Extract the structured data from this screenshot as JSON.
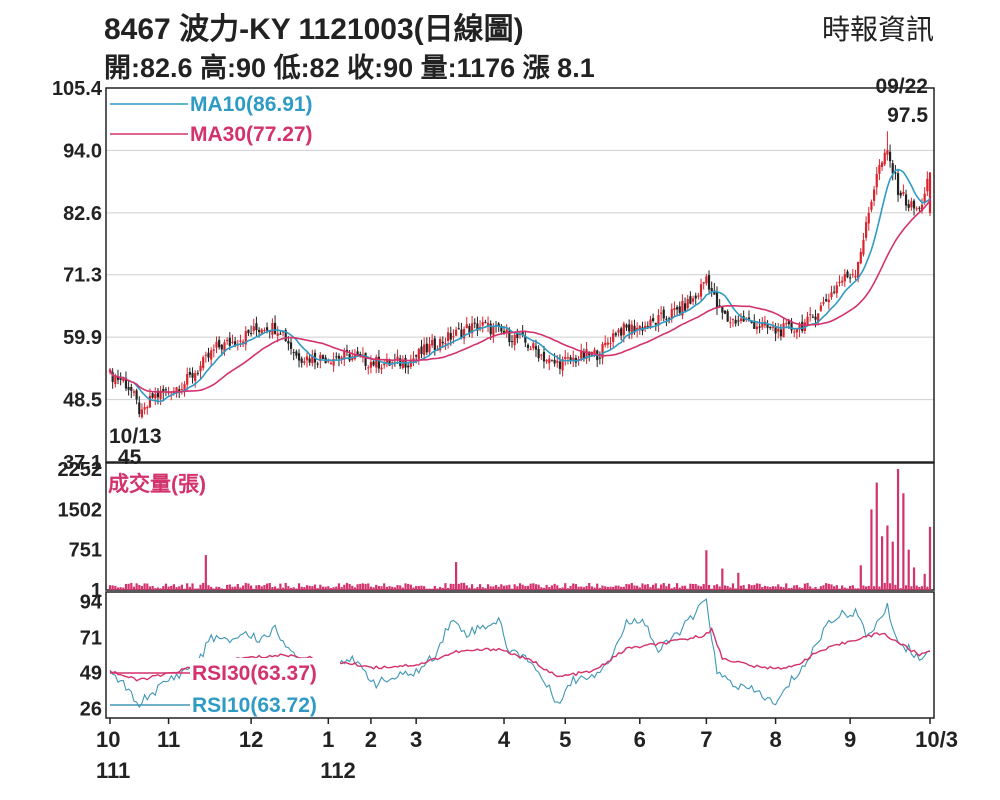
{
  "header": {
    "title": "8467  波力-KY 1121003(日線圖)",
    "ohlc": "開:82.6 高:90 低:82 收:90 量:1176 漲 8.1",
    "source": "時報資訊"
  },
  "colors": {
    "up": "#d9232e",
    "down": "#222222",
    "ma10": "#2e9bc4",
    "ma30": "#d3326c",
    "volume": "#d3326c",
    "rsi10": "#3f97b5",
    "rsi30": "#d3326c",
    "grid": "#cfcfcf",
    "axis": "#222222"
  },
  "chart_data": [
    {
      "type": "candlestick",
      "y_ticks": [
        105.4,
        94.0,
        82.6,
        71.3,
        59.9,
        48.5,
        37.1
      ],
      "ylim": [
        37.1,
        105.4
      ],
      "legend": [
        {
          "key": "ma10",
          "label": "MA10(86.91)"
        },
        {
          "key": "ma30",
          "label": "MA30(77.27)"
        }
      ],
      "annotations": [
        {
          "date_label": "09/22",
          "value_label": "97.5",
          "value": 97.5
        },
        {
          "date_label": "10/13",
          "value_label": "45",
          "value": 45
        }
      ],
      "anchors": [
        [
          0,
          53.0
        ],
        [
          5,
          52.0
        ],
        [
          8,
          50.0
        ],
        [
          12,
          45.5
        ],
        [
          16,
          49.0
        ],
        [
          22,
          50.0
        ],
        [
          28,
          51.5
        ],
        [
          34,
          54.5
        ],
        [
          40,
          58.0
        ],
        [
          46,
          59.0
        ],
        [
          52,
          60.5
        ],
        [
          58,
          62.0
        ],
        [
          64,
          61.5
        ],
        [
          70,
          56.5
        ],
        [
          76,
          56.0
        ],
        [
          84,
          56.2
        ],
        [
          90,
          56.5
        ],
        [
          96,
          55.5
        ],
        [
          104,
          55.0
        ],
        [
          112,
          55.5
        ],
        [
          120,
          58.0
        ],
        [
          128,
          60.0
        ],
        [
          134,
          61.5
        ],
        [
          140,
          62.0
        ],
        [
          148,
          60.5
        ],
        [
          154,
          59.5
        ],
        [
          160,
          57.5
        ],
        [
          166,
          55.0
        ],
        [
          172,
          55.5
        ],
        [
          178,
          56.5
        ],
        [
          184,
          57.0
        ],
        [
          190,
          61.0
        ],
        [
          196,
          61.5
        ],
        [
          202,
          62.0
        ],
        [
          208,
          63.5
        ],
        [
          214,
          65.0
        ],
        [
          220,
          67.0
        ],
        [
          224,
          71.0
        ],
        [
          228,
          65.5
        ],
        [
          232,
          63.0
        ],
        [
          238,
          63.0
        ],
        [
          244,
          62.0
        ],
        [
          250,
          61.0
        ],
        [
          256,
          61.5
        ],
        [
          262,
          62.5
        ],
        [
          268,
          66.0
        ],
        [
          274,
          70.0
        ],
        [
          280,
          72.0
        ],
        [
          284,
          80.0
        ],
        [
          288,
          90.0
        ],
        [
          292,
          93.5
        ],
        [
          296,
          87.0
        ],
        [
          300,
          84.0
        ],
        [
          304,
          83.0
        ],
        [
          308,
          90.0
        ]
      ],
      "ma10_last": 86.91,
      "ma30_last": 77.27
    },
    {
      "type": "bar",
      "title": "成交量(張)",
      "y_ticks": [
        2252,
        1502,
        751,
        1
      ],
      "ylim": [
        1,
        2252
      ],
      "spikes": [
        [
          36,
          650
        ],
        [
          130,
          520
        ],
        [
          224,
          740
        ],
        [
          230,
          400
        ],
        [
          236,
          320
        ],
        [
          282,
          460
        ],
        [
          286,
          1500
        ],
        [
          288,
          2000
        ],
        [
          290,
          1000
        ],
        [
          292,
          1200
        ],
        [
          294,
          900
        ],
        [
          296,
          2252
        ],
        [
          298,
          1800
        ],
        [
          300,
          750
        ],
        [
          302,
          420
        ],
        [
          306,
          300
        ],
        [
          308,
          1176
        ]
      ],
      "base_volume": 70
    },
    {
      "type": "line",
      "y_ticks": [
        94,
        71,
        49,
        26
      ],
      "ylim": [
        20,
        100
      ],
      "legend": [
        {
          "key": "rsi30",
          "label": "RSI30(63.37)"
        },
        {
          "key": "rsi10",
          "label": "RSI10(63.72)"
        }
      ],
      "rsi10_anchors": [
        [
          0,
          48
        ],
        [
          6,
          40
        ],
        [
          10,
          28
        ],
        [
          16,
          36
        ],
        [
          22,
          44
        ],
        [
          28,
          50
        ],
        [
          34,
          58
        ],
        [
          38,
          72
        ],
        [
          44,
          68
        ],
        [
          50,
          74
        ],
        [
          56,
          70
        ],
        [
          62,
          76
        ],
        [
          66,
          68
        ],
        [
          70,
          56
        ],
        [
          80,
          54
        ],
        [
          90,
          58
        ],
        [
          100,
          42
        ],
        [
          108,
          46
        ],
        [
          116,
          50
        ],
        [
          122,
          60
        ],
        [
          128,
          82
        ],
        [
          134,
          74
        ],
        [
          140,
          78
        ],
        [
          146,
          82
        ],
        [
          150,
          62
        ],
        [
          156,
          60
        ],
        [
          162,
          46
        ],
        [
          168,
          30
        ],
        [
          174,
          44
        ],
        [
          182,
          48
        ],
        [
          188,
          58
        ],
        [
          194,
          80
        ],
        [
          200,
          84
        ],
        [
          206,
          62
        ],
        [
          212,
          72
        ],
        [
          220,
          86
        ],
        [
          224,
          96
        ],
        [
          228,
          48
        ],
        [
          236,
          40
        ],
        [
          244,
          36
        ],
        [
          250,
          28
        ],
        [
          256,
          44
        ],
        [
          262,
          56
        ],
        [
          270,
          82
        ],
        [
          276,
          86
        ],
        [
          280,
          88
        ],
        [
          284,
          72
        ],
        [
          288,
          80
        ],
        [
          292,
          90
        ],
        [
          296,
          68
        ],
        [
          300,
          64
        ],
        [
          304,
          58
        ],
        [
          308,
          64
        ]
      ],
      "rsi30_anchors": [
        [
          0,
          50
        ],
        [
          10,
          44
        ],
        [
          22,
          48
        ],
        [
          34,
          54
        ],
        [
          50,
          58
        ],
        [
          66,
          60
        ],
        [
          80,
          57
        ],
        [
          100,
          52
        ],
        [
          116,
          54
        ],
        [
          130,
          62
        ],
        [
          146,
          64
        ],
        [
          160,
          55
        ],
        [
          168,
          46
        ],
        [
          182,
          50
        ],
        [
          194,
          64
        ],
        [
          210,
          68
        ],
        [
          222,
          72
        ],
        [
          226,
          76
        ],
        [
          230,
          58
        ],
        [
          244,
          52
        ],
        [
          256,
          52
        ],
        [
          266,
          62
        ],
        [
          280,
          70
        ],
        [
          290,
          74
        ],
        [
          296,
          68
        ],
        [
          304,
          60
        ],
        [
          308,
          63
        ]
      ]
    }
  ],
  "x_axis": {
    "month_ticks": [
      {
        "label": "10",
        "index": 0
      },
      {
        "label": "11",
        "index": 22
      },
      {
        "label": "12",
        "index": 53
      },
      {
        "label": "1",
        "index": 82
      },
      {
        "label": "2",
        "index": 98
      },
      {
        "label": "3",
        "index": 115
      },
      {
        "label": "4",
        "index": 148
      },
      {
        "label": "5",
        "index": 171
      },
      {
        "label": "6",
        "index": 199
      },
      {
        "label": "7",
        "index": 224
      },
      {
        "label": "8",
        "index": 250
      },
      {
        "label": "9",
        "index": 278
      },
      {
        "label": "10/3",
        "index": 308
      }
    ],
    "year_labels": [
      {
        "label": "111",
        "index": 0
      },
      {
        "label": "112",
        "index": 82
      }
    ]
  }
}
